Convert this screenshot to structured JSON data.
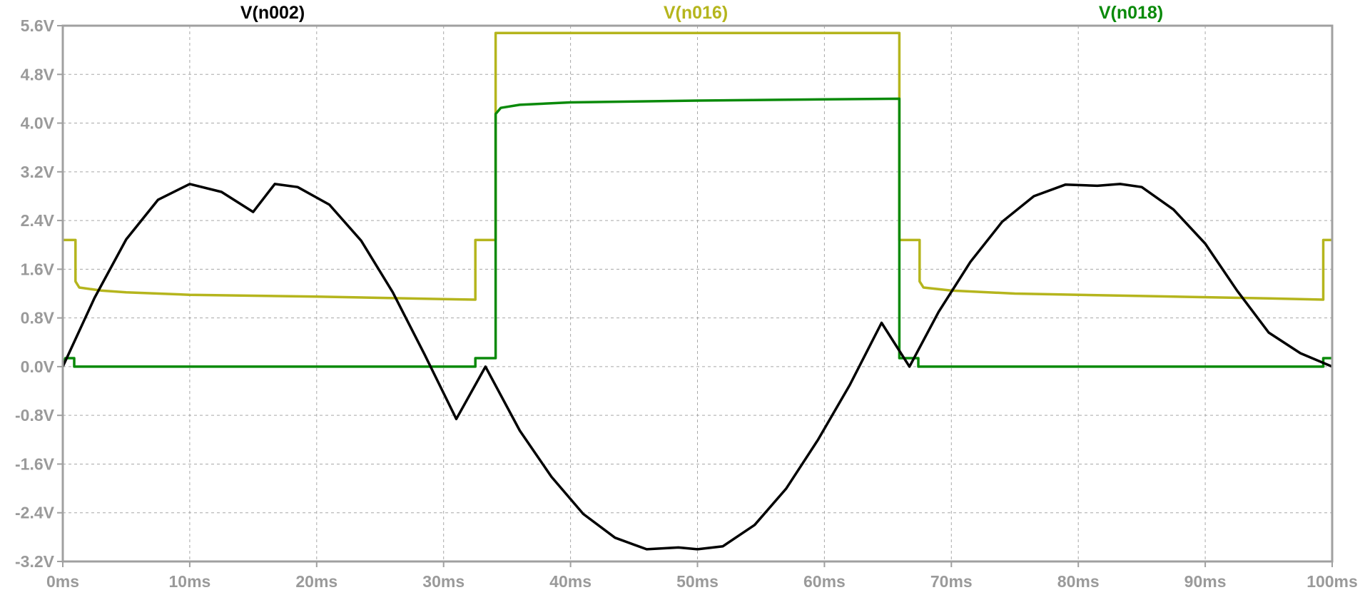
{
  "chart_data": {
    "type": "line",
    "title": "",
    "xlabel": "",
    "ylabel": "",
    "xlim": [
      0,
      100
    ],
    "ylim": [
      -3.2,
      5.6
    ],
    "x_ticks": [
      0,
      10,
      20,
      30,
      40,
      50,
      60,
      70,
      80,
      90,
      100
    ],
    "x_tick_labels": [
      "0ms",
      "10ms",
      "20ms",
      "30ms",
      "40ms",
      "50ms",
      "60ms",
      "70ms",
      "80ms",
      "90ms",
      "100ms"
    ],
    "y_ticks": [
      5.6,
      4.8,
      4.0,
      3.2,
      2.4,
      1.6,
      0.8,
      0.0,
      -0.8,
      -1.6,
      -2.4,
      -3.2
    ],
    "y_tick_labels": [
      "5.6V",
      "4.8V",
      "4.0V",
      "3.2V",
      "2.4V",
      "1.6V",
      "0.8V",
      "0.0V",
      "-0.8V",
      "-1.6V",
      "-2.4V",
      "-3.2V"
    ],
    "grid": true,
    "legend": "top",
    "series": [
      {
        "name": "V(n002)",
        "color": "#000000",
        "x": [
          0,
          2.5,
          5,
          7.5,
          10,
          12.5,
          15,
          16.7,
          18.5,
          21,
          23.5,
          26,
          28.5,
          31,
          33.3,
          36,
          38.5,
          41,
          43.5,
          46,
          48.5,
          50,
          52,
          54.5,
          57,
          59.5,
          62,
          64.5,
          66.7,
          69,
          71.5,
          74,
          76.5,
          79,
          81.5,
          83.3,
          85,
          87.5,
          90,
          92.5,
          95,
          97.5,
          100
        ],
        "values": [
          0.0,
          1.13,
          2.09,
          2.74,
          3.0,
          2.87,
          2.54,
          3.0,
          2.95,
          2.66,
          2.07,
          1.22,
          0.2,
          -0.86,
          -0.0,
          -1.05,
          -1.81,
          -2.42,
          -2.81,
          -3.0,
          -2.97,
          -3.0,
          -2.95,
          -2.6,
          -2.0,
          -1.2,
          -0.3,
          0.72,
          0.0,
          0.9,
          1.72,
          2.38,
          2.8,
          2.99,
          2.97,
          3.0,
          2.95,
          2.58,
          2.02,
          1.25,
          0.56,
          0.22,
          0.0
        ]
      },
      {
        "name": "V(n016)",
        "color": "#b5b51d",
        "x": [
          0,
          1.0,
          1.0,
          1.3,
          3,
          5,
          10,
          20,
          30,
          32.5,
          32.5,
          34.1,
          34.1,
          65.9,
          65.9,
          67.5,
          67.5,
          67.8,
          70,
          75,
          85,
          95,
          99.3,
          99.3,
          100
        ],
        "values": [
          2.08,
          2.08,
          1.4,
          1.3,
          1.25,
          1.22,
          1.18,
          1.15,
          1.11,
          1.1,
          2.08,
          2.08,
          5.48,
          5.48,
          2.08,
          2.08,
          1.4,
          1.3,
          1.25,
          1.2,
          1.16,
          1.12,
          1.1,
          2.08,
          2.08
        ]
      },
      {
        "name": "V(n018)",
        "color": "#0a8a0a",
        "x": [
          0,
          0.2,
          0.9,
          0.9,
          32.5,
          32.5,
          34.1,
          34.1,
          34.5,
          36,
          40,
          50,
          60,
          65.9,
          65.9,
          67.4,
          67.4,
          99.3,
          99.3,
          100
        ],
        "values": [
          0.0,
          0.14,
          0.14,
          0.0,
          0.0,
          0.14,
          0.14,
          4.15,
          4.25,
          4.3,
          4.34,
          4.37,
          4.39,
          4.4,
          0.14,
          0.14,
          0.0,
          0.0,
          0.14,
          0.14
        ]
      }
    ]
  }
}
